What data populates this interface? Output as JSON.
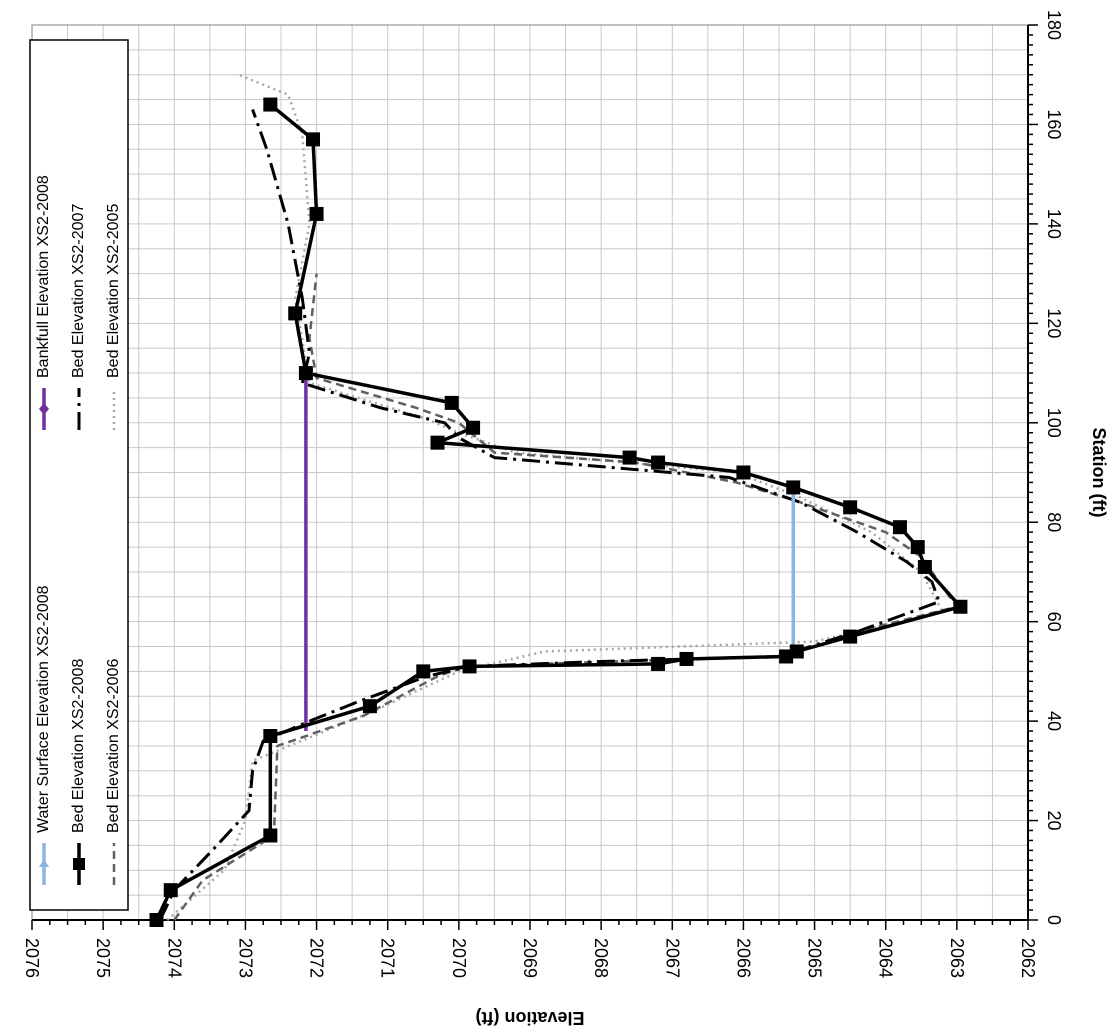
{
  "chart_data": {
    "type": "line",
    "orientation": "rotated 90 degrees clockwise (x axis vertical on right, y axis horizontal at bottom, reversed)",
    "title": "",
    "xlabel": "Station (ft)",
    "ylabel": "Elevation (ft)",
    "xlim": [
      0,
      180
    ],
    "ylim": [
      2062,
      2076
    ],
    "x_ticks": [
      "0",
      "20",
      "40",
      "60",
      "80",
      "100",
      "120",
      "140",
      "160",
      "180"
    ],
    "y_ticks": [
      "2062",
      "2063",
      "2064",
      "2065",
      "2066",
      "2067",
      "2068",
      "2069",
      "2070",
      "2071",
      "2072",
      "2073",
      "2074",
      "2075",
      "2076"
    ],
    "grid": true,
    "legend_position": "top-left (rotated)",
    "series": [
      {
        "name": "Water Surface Elevation XS2-2008",
        "style": "solid",
        "color": "#8db4e2",
        "x": [
          54,
          86
        ],
        "y": [
          2065.3,
          2065.3
        ]
      },
      {
        "name": "Bankfull Elevation XS2-2008",
        "style": "solid",
        "color": "#7030a0",
        "x": [
          38,
          110
        ],
        "y": [
          2072.15,
          2072.15
        ]
      },
      {
        "name": "Bed Elevation XS2-2008",
        "style": "solid-square",
        "color": "#000000",
        "x": [
          0,
          6,
          17,
          37,
          43,
          50,
          51,
          51.5,
          52.5,
          53,
          54,
          57,
          63,
          71,
          75,
          79,
          83,
          87,
          90,
          92,
          93,
          96,
          99,
          104,
          110,
          122,
          142,
          157,
          164
        ],
        "y": [
          2074.25,
          2074.05,
          2072.65,
          2072.65,
          2071.25,
          2070.5,
          2069.85,
          2067.2,
          2066.8,
          2065.4,
          2065.25,
          2064.5,
          2062.95,
          2063.45,
          2063.55,
          2063.8,
          2064.5,
          2065.3,
          2066.0,
          2067.2,
          2067.6,
          2070.3,
          2069.8,
          2070.1,
          2072.15,
          2072.3,
          2072.0,
          2072.05,
          2072.65
        ]
      },
      {
        "name": "Bed Elevation XS2-2007",
        "style": "dash-dot",
        "color": "#000000",
        "x": [
          0,
          6,
          15,
          22,
          30,
          36,
          40,
          44,
          49,
          51,
          52,
          53,
          58,
          64,
          68,
          72,
          78,
          84,
          89,
          93,
          97,
          100,
          103,
          108,
          114,
          125,
          140,
          155,
          163
        ],
        "y": [
          2074.2,
          2074.0,
          2073.4,
          2072.95,
          2072.9,
          2072.75,
          2072.1,
          2071.4,
          2070.45,
          2069.85,
          2068.0,
          2065.5,
          2064.4,
          2063.25,
          2063.35,
          2063.7,
          2064.4,
          2065.2,
          2066.2,
          2069.5,
          2070.0,
          2070.2,
          2071.1,
          2072.2,
          2072.1,
          2072.2,
          2072.4,
          2072.7,
          2072.9
        ]
      },
      {
        "name": "Bed Elevation XS2-2006",
        "style": "dashed",
        "color": "#606060",
        "x": [
          0,
          8,
          17,
          35,
          41,
          49,
          51,
          52,
          53,
          55,
          58,
          63,
          69,
          73,
          78,
          84,
          88,
          92,
          94,
          100,
          103,
          109,
          117,
          130
        ],
        "y": [
          2074.0,
          2073.6,
          2072.6,
          2072.55,
          2071.35,
          2070.3,
          2069.9,
          2067.8,
          2065.6,
          2065.0,
          2064.4,
          2063.0,
          2063.3,
          2063.5,
          2064.0,
          2065.2,
          2066.1,
          2067.5,
          2069.5,
          2070.0,
          2070.6,
          2072.0,
          2072.1,
          2072.0
        ]
      },
      {
        "name": "Bed Elevation XS2-2005",
        "style": "dotted",
        "color": "#a6a6a6",
        "x": [
          0,
          10,
          20,
          32,
          42,
          50,
          54,
          56,
          62,
          70,
          78,
          85,
          90,
          94,
          98,
          101,
          108,
          125,
          140,
          158,
          166,
          170
        ],
        "y": [
          2074.1,
          2073.3,
          2073.0,
          2072.9,
          2071.2,
          2070.0,
          2068.8,
          2065.0,
          2063.2,
          2063.5,
          2064.2,
          2065.2,
          2066.1,
          2069.2,
          2070.0,
          2070.5,
          2072.1,
          2072.3,
          2072.1,
          2072.2,
          2072.4,
          2073.1
        ]
      }
    ]
  },
  "legend": {
    "items": [
      "Water Surface Elevation XS2-2008",
      "Bankfull Elevation XS2-2008",
      "Bed Elevation XS2-2008",
      "Bed Elevation XS2-2007",
      "Bed Elevation XS2-2006",
      "Bed Elevation XS2-2005"
    ]
  }
}
